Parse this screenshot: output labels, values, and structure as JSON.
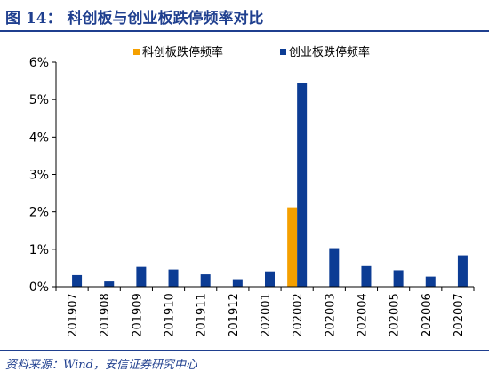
{
  "header": {
    "title": "图 14：  科创板与创业板跌停频率对比"
  },
  "footer": {
    "source": "资料来源：Wind，安信证券研究中心"
  },
  "chart_data": {
    "type": "bar",
    "title": "",
    "xlabel": "",
    "ylabel": "",
    "categories": [
      "201907",
      "201908",
      "201909",
      "201910",
      "201911",
      "201912",
      "202001",
      "202002",
      "202003",
      "202004",
      "202005",
      "202006",
      "202007"
    ],
    "series": [
      {
        "name": "科创板跌停频率",
        "color": "#f5a000",
        "values": [
          0,
          0,
          0,
          0,
          0,
          0,
          0,
          2.12,
          0,
          0,
          0,
          0,
          0
        ]
      },
      {
        "name": "创业板跌停频率",
        "color": "#0c3c94",
        "values": [
          0.31,
          0.14,
          0.53,
          0.46,
          0.33,
          0.2,
          0.41,
          5.45,
          1.03,
          0.55,
          0.44,
          0.27,
          0.84
        ]
      }
    ],
    "ylim": [
      0,
      6
    ],
    "yticks": [
      "0%",
      "1%",
      "2%",
      "3%",
      "4%",
      "5%",
      "6%"
    ],
    "grid": false,
    "legend": "top-right"
  }
}
